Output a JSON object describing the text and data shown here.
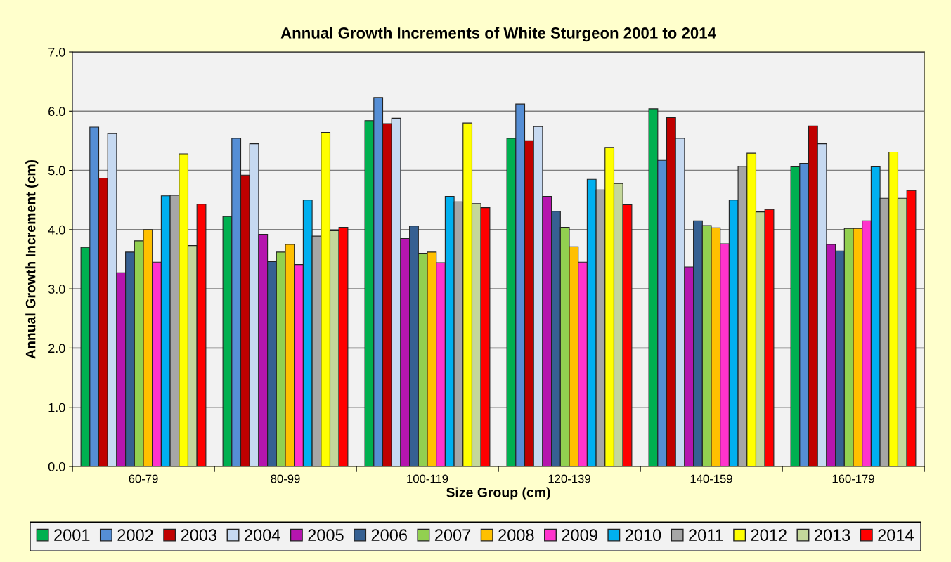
{
  "chart_data": {
    "type": "bar",
    "title": "Annual Growth Increments of White Sturgeon 2001 to 2014",
    "xlabel": "Size Group (cm)",
    "ylabel": "Annual Growth Increment (cm)",
    "categories": [
      "60-79",
      "80-99",
      "100-119",
      "120-139",
      "140-159",
      "160-179"
    ],
    "series": [
      {
        "name": "2001",
        "color": "#00b050",
        "values": [
          3.7,
          4.22,
          5.84,
          5.54,
          6.04,
          5.06
        ]
      },
      {
        "name": "2002",
        "color": "#558ed5",
        "values": [
          5.73,
          5.54,
          6.23,
          6.12,
          5.17,
          5.12
        ]
      },
      {
        "name": "2003",
        "color": "#c00000",
        "values": [
          4.87,
          4.92,
          5.79,
          5.5,
          5.89,
          5.75
        ]
      },
      {
        "name": "2004",
        "color": "#c6d9f1",
        "values": [
          5.62,
          5.45,
          5.88,
          5.74,
          5.54,
          5.45
        ]
      },
      {
        "name": "2005",
        "color": "#b515ae",
        "values": [
          3.27,
          3.92,
          3.85,
          4.56,
          3.37,
          3.75
        ]
      },
      {
        "name": "2006",
        "color": "#366092",
        "values": [
          3.62,
          3.46,
          4.06,
          4.31,
          4.15,
          3.64
        ]
      },
      {
        "name": "2007",
        "color": "#92d050",
        "values": [
          3.81,
          3.62,
          3.6,
          4.04,
          4.07,
          4.02
        ]
      },
      {
        "name": "2008",
        "color": "#ffc000",
        "values": [
          4.0,
          3.75,
          3.62,
          3.71,
          4.03,
          4.02
        ]
      },
      {
        "name": "2009",
        "color": "#ff33cc",
        "values": [
          3.45,
          3.41,
          3.44,
          3.45,
          3.76,
          4.15
        ]
      },
      {
        "name": "2010",
        "color": "#00b0f0",
        "values": [
          4.57,
          4.5,
          4.56,
          4.85,
          4.5,
          5.06
        ]
      },
      {
        "name": "2011",
        "color": "#a6a6a6",
        "values": [
          4.58,
          3.89,
          4.47,
          4.67,
          5.07,
          4.53
        ]
      },
      {
        "name": "2012",
        "color": "#ffff00",
        "values": [
          5.28,
          5.64,
          5.8,
          5.39,
          5.29,
          5.31
        ]
      },
      {
        "name": "2013",
        "color": "#c4d79b",
        "values": [
          3.73,
          3.98,
          4.44,
          4.78,
          4.3,
          4.53
        ]
      },
      {
        "name": "2014",
        "color": "#ff0000",
        "values": [
          4.43,
          4.04,
          4.37,
          4.42,
          4.34,
          4.66
        ]
      }
    ],
    "ylim": [
      0,
      7
    ],
    "yticks": [
      {
        "value": 0,
        "label": "0.0"
      },
      {
        "value": 1,
        "label": "1.0"
      },
      {
        "value": 2,
        "label": "2.0"
      },
      {
        "value": 3,
        "label": "3.0"
      },
      {
        "value": 4,
        "label": "4.0"
      },
      {
        "value": 5,
        "label": "5.0"
      },
      {
        "value": 6,
        "label": "6.0"
      },
      {
        "value": 7,
        "label": "7.0"
      }
    ],
    "grid": "y",
    "legend": "bottom"
  }
}
